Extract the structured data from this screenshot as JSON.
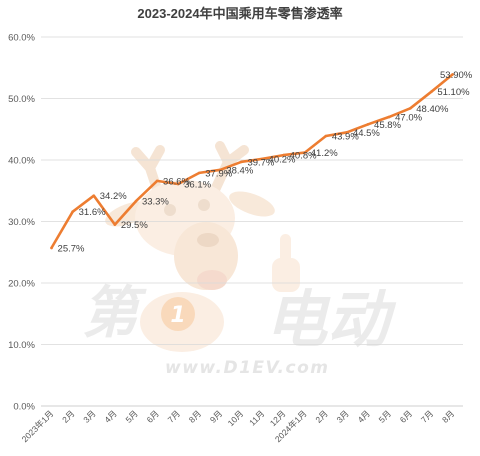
{
  "colors": {
    "series_line": "#ED7D31",
    "gridline": "#D9D9D9",
    "axis_line": "#BFBFBF"
  },
  "watermark": {
    "brand_left": "第",
    "brand_badge": "1",
    "brand_right": "电动",
    "url": "www.D1EV.com",
    "mascot_icon": "deer-mascot-icon"
  },
  "chart_data": {
    "type": "line",
    "title": "2023-2024年中国乘用车零售渗透率",
    "xlabel": "",
    "ylabel": "",
    "x": [
      "2023年1月",
      "2月",
      "3月",
      "4月",
      "5月",
      "6月",
      "7月",
      "8月",
      "9月",
      "10月",
      "11月",
      "12月",
      "2024年1月",
      "2月",
      "3月",
      "4月",
      "5月",
      "6月",
      "7月",
      "8月"
    ],
    "ylim": [
      0,
      60
    ],
    "yticks": [
      0,
      10,
      20,
      30,
      40,
      50,
      60
    ],
    "ytick_labels": [
      "0.0%",
      "10.0%",
      "20.0%",
      "30.0%",
      "40.0%",
      "50.0%",
      "60.0%"
    ],
    "grid": true,
    "legend": "none",
    "series": [
      {
        "values": [
          25.7,
          31.6,
          34.2,
          29.5,
          33.3,
          36.6,
          36.1,
          37.9,
          38.4,
          39.7,
          40.2,
          40.8,
          41.2,
          43.9,
          44.5,
          45.8,
          47.0,
          48.4,
          51.1,
          53.9
        ],
        "data_labels": [
          "25.7%",
          "31.6%",
          "34.2%",
          "29.5%",
          "33.3%",
          "36.6%",
          "36.1%",
          "37.9%",
          "38.4%",
          "39.7%",
          "40.2%",
          "40.8%",
          "41.2%",
          "43.9%",
          "44.5%",
          "45.8%",
          "47.0%",
          "48.40%",
          "51.10%",
          "53.90%"
        ]
      }
    ]
  }
}
